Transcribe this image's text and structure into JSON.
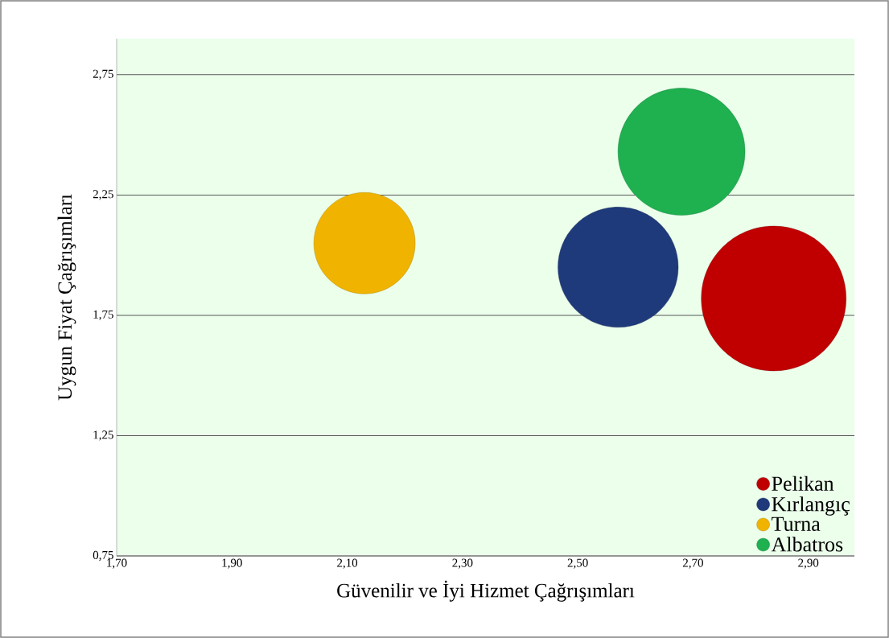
{
  "chart_data": {
    "type": "bubble",
    "xlabel": "Güvenilir ve İyi Hizmet Çağrışımları",
    "ylabel": "Uygun Fiyat Çağrışımları",
    "xlim": [
      1.7,
      2.98
    ],
    "ylim": [
      0.75,
      2.9
    ],
    "xticks": [
      {
        "value": 1.7,
        "label": "1,70"
      },
      {
        "value": 1.9,
        "label": "1,90"
      },
      {
        "value": 2.1,
        "label": "2,10"
      },
      {
        "value": 2.3,
        "label": "2,30"
      },
      {
        "value": 2.5,
        "label": "2,50"
      },
      {
        "value": 2.7,
        "label": "2,70"
      },
      {
        "value": 2.9,
        "label": "2,90"
      }
    ],
    "yticks": [
      {
        "value": 0.75,
        "label": "0,75"
      },
      {
        "value": 1.25,
        "label": "1,25"
      },
      {
        "value": 1.75,
        "label": "1,75"
      },
      {
        "value": 2.25,
        "label": "2,25"
      },
      {
        "value": 2.75,
        "label": "2,75"
      }
    ],
    "grid": "y",
    "legend": "bottom right",
    "series": [
      {
        "name": "Pelikan",
        "color": "#c00000",
        "x": [
          2.84
        ],
        "values": [
          1.82
        ],
        "sizes": [
          1
        ]
      },
      {
        "name": "Kırlangıç",
        "color": "#1f3a7a",
        "x": [
          2.57
        ],
        "values": [
          1.95
        ],
        "sizes": [
          0.69
        ]
      },
      {
        "name": "Turna",
        "color": "#f0b400",
        "x": [
          2.13
        ],
        "values": [
          2.05
        ],
        "sizes": [
          0.49
        ]
      },
      {
        "name": "Albatros",
        "color": "#1fb050",
        "x": [
          2.68
        ],
        "values": [
          2.43
        ],
        "sizes": [
          0.77
        ]
      }
    ]
  }
}
